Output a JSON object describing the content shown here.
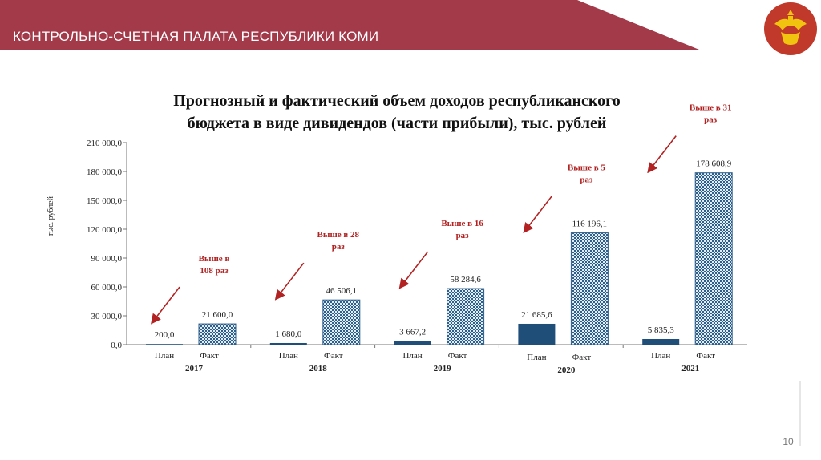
{
  "header": {
    "title": "КОНТРОЛЬНО-СЧЕТНАЯ ПАЛАТА РЕСПУБЛИКИ КОМИ",
    "band_color": "#a33a4a",
    "emblem_icon": "komi-emblem-icon"
  },
  "page_number": "10",
  "chart_data": {
    "type": "bar",
    "title_lines": [
      "Прогнозный и фактический объем доходов республиканского",
      "бюджета в виде дивидендов (части прибыли), тыс. рублей"
    ],
    "ylabel": "тыс. рублей",
    "ylim": [
      0,
      210000
    ],
    "yticks": [
      0,
      30000,
      60000,
      90000,
      120000,
      150000,
      180000,
      210000
    ],
    "ytick_labels": [
      "0,0",
      "30 000,0",
      "60 000,0",
      "90 000,0",
      "120 000,0",
      "150 000,0",
      "180 000,0",
      "210 000,0"
    ],
    "categories": [
      "2017",
      "2018",
      "2019",
      "2020",
      "2021"
    ],
    "sub_categories": [
      "План",
      "Факт"
    ],
    "series": [
      {
        "name": "План",
        "values": [
          200.0,
          1680.0,
          3667.2,
          21685.6,
          5835.3
        ],
        "labels": [
          "200,0",
          "1 680,0",
          "3 667,2",
          "21 685,6",
          "5 835,3"
        ],
        "color": "#1f4e79"
      },
      {
        "name": "Факт",
        "values": [
          21600.0,
          46506.1,
          58284.6,
          116196.1,
          178608.9
        ],
        "labels": [
          "21 600,0",
          "46 506,1",
          "58 284,6",
          "116 196,1",
          "178 608,9"
        ],
        "color": "#2e5f8a"
      }
    ],
    "annotations": [
      {
        "year": "2017",
        "lines": [
          "Выше в",
          "108 раз"
        ]
      },
      {
        "year": "2018",
        "lines": [
          "Выше в 28",
          "раз"
        ]
      },
      {
        "year": "2019",
        "lines": [
          "Выше в 16",
          "раз"
        ]
      },
      {
        "year": "2020",
        "lines": [
          "Выше в 5",
          "раз"
        ]
      },
      {
        "year": "2021",
        "lines": [
          "Выше в 31",
          "раз"
        ]
      }
    ],
    "annotation_color": "#b22222",
    "grid": false,
    "legend": "none"
  }
}
